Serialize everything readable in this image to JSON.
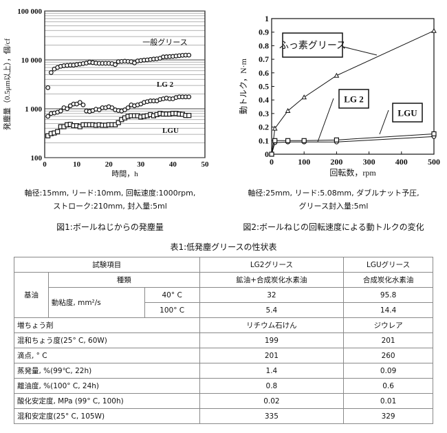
{
  "figure1": {
    "caption": "図1:ボールねじからの発塵量",
    "conditions": [
      "軸径:15mm, リード:10mm, 回転速度:1000rpm,",
      "ストローク:210mm, 封入量:5ml"
    ],
    "chart_data": {
      "type": "scatter",
      "xlabel": "時間，h",
      "ylabel": "発塵量（0.5μm以上），個/cf",
      "xlim": [
        0,
        50
      ],
      "ylim": [
        100,
        100000
      ],
      "yscale": "log",
      "xticks": [
        "0",
        "10",
        "20",
        "30",
        "40",
        "50"
      ],
      "yticks": [
        "100",
        "1 000",
        "10 000",
        "100 000"
      ],
      "series": [
        {
          "name": "一般グリース",
          "marker": "circle",
          "x": [
            1,
            2,
            3,
            4,
            5,
            6,
            7,
            8,
            9,
            10,
            11,
            12,
            13,
            14,
            15,
            16,
            17,
            18,
            19,
            20,
            21,
            22,
            23,
            24,
            25,
            26,
            27,
            28,
            29,
            30,
            31,
            32,
            33,
            34,
            35,
            36,
            37,
            38,
            39,
            40,
            41,
            42,
            43,
            44,
            45
          ],
          "y": [
            2700,
            5500,
            6500,
            7000,
            7400,
            7600,
            7700,
            7800,
            7800,
            8000,
            8200,
            8400,
            8600,
            9000,
            8800,
            8600,
            8500,
            8500,
            8500,
            8500,
            8400,
            8000,
            9200,
            9300,
            9400,
            9300,
            9200,
            8700,
            9500,
            9700,
            9900,
            10000,
            10200,
            10400,
            10500,
            10800,
            11500,
            11600,
            11700,
            11800,
            12000,
            12200,
            12400,
            12500,
            12500
          ]
        },
        {
          "name": "LG 2",
          "marker": "circle",
          "x": [
            1,
            2,
            3,
            4,
            5,
            6,
            7,
            8,
            9,
            10,
            11,
            12,
            13,
            14,
            15,
            16,
            17,
            18,
            19,
            20,
            21,
            22,
            23,
            24,
            25,
            26,
            27,
            28,
            29,
            30,
            31,
            32,
            33,
            34,
            35,
            36,
            37,
            38,
            39,
            40,
            41,
            42,
            43,
            44,
            45
          ],
          "y": [
            700,
            800,
            820,
            850,
            900,
            1050,
            1000,
            1150,
            1250,
            1250,
            1350,
            1200,
            900,
            880,
            920,
            980,
            950,
            1050,
            1050,
            1100,
            1050,
            950,
            920,
            900,
            950,
            1050,
            1200,
            1150,
            1200,
            1250,
            1350,
            1400,
            1450,
            1450,
            1450,
            1550,
            1600,
            1650,
            1600,
            1600,
            1700,
            1750,
            1750,
            1750,
            1750
          ]
        },
        {
          "name": "LGU",
          "marker": "square",
          "x": [
            1,
            2,
            3,
            4,
            5,
            6,
            7,
            8,
            9,
            10,
            11,
            12,
            13,
            14,
            15,
            16,
            17,
            18,
            19,
            20,
            21,
            22,
            23,
            24,
            25,
            26,
            27,
            28,
            29,
            30,
            31,
            32,
            33,
            34,
            35,
            36,
            37,
            38,
            39,
            40,
            41,
            42,
            43,
            44,
            45
          ],
          "y": [
            280,
            310,
            320,
            340,
            430,
            430,
            470,
            480,
            450,
            450,
            430,
            470,
            470,
            470,
            470,
            460,
            470,
            460,
            460,
            470,
            470,
            470,
            520,
            600,
            650,
            700,
            720,
            720,
            720,
            680,
            700,
            720,
            760,
            720,
            760,
            800,
            780,
            780,
            780,
            800,
            800,
            780,
            770,
            730,
            730
          ]
        }
      ]
    }
  },
  "figure2": {
    "caption": "図2:ボールねじの回転速度による動トルクの変化",
    "conditions": [
      "軸径:25mm, リード:5.08mm, ダブルナット予圧,",
      "グリース封入量:5ml"
    ],
    "chart_data": {
      "type": "line",
      "xlabel": "回転数，rpm",
      "ylabel": "動トルク，N·m",
      "xlim": [
        0,
        500
      ],
      "ylim": [
        0,
        1
      ],
      "xticks": [
        "0",
        "100",
        "200",
        "300",
        "400",
        "500"
      ],
      "yticks": [
        "0",
        "0.1",
        "0.2",
        "0.3",
        "0.4",
        "0.5",
        "0.6",
        "0.7",
        "0.8",
        "0.9",
        "1"
      ],
      "series": [
        {
          "name": "ふっ素グリース",
          "marker": "triangle",
          "x": [
            0,
            10,
            50,
            100,
            200,
            500
          ],
          "y": [
            0,
            0.19,
            0.32,
            0.42,
            0.58,
            0.91
          ]
        },
        {
          "name": "LG 2",
          "marker": "circle",
          "x": [
            0,
            10,
            50,
            100,
            200,
            500
          ],
          "y": [
            0,
            0.085,
            0.09,
            0.09,
            0.09,
            0.13
          ]
        },
        {
          "name": "LGU",
          "marker": "square",
          "x": [
            0,
            10,
            50,
            100,
            200,
            500
          ],
          "y": [
            0,
            0.1,
            0.1,
            0.1,
            0.105,
            0.15
          ]
        }
      ]
    }
  },
  "table": {
    "title": "表1:低発塵グリースの性状表",
    "header": [
      "試験項目",
      "LG2グリース",
      "LGUグリース"
    ],
    "base_oil": "基油",
    "type_label": "種類",
    "type_values": [
      "鉱油+合成炭化水素油",
      "合成炭化水素油"
    ],
    "viscosity_label": "動粘度, mm²/s",
    "viscosity_rows": [
      {
        "temp": "40° C",
        "lg2": "32",
        "lgu": "95.8"
      },
      {
        "temp": "100° C",
        "lg2": "5.4",
        "lgu": "14.4"
      }
    ],
    "rows": [
      {
        "item": "増ちょう剤",
        "lg2": "リチウム石けん",
        "lgu": "ジウレア"
      },
      {
        "item": "混和ちょう度(25° C, 60W)",
        "lg2": "199",
        "lgu": "201"
      },
      {
        "item": "滴点, ° C",
        "lg2": "201",
        "lgu": "260"
      },
      {
        "item": "蒸発量, %(99℃, 22h)",
        "lg2": "1.4",
        "lgu": "0.09"
      },
      {
        "item": "離油度, %(100° C, 24h)",
        "lg2": "0.8",
        "lgu": "0.6"
      },
      {
        "item": "酸化安定度, MPa (99° C, 100h)",
        "lg2": "0.02",
        "lgu": "0.01"
      },
      {
        "item": "混和安定度(25° C, 105W)",
        "lg2": "335",
        "lgu": "329"
      }
    ]
  }
}
